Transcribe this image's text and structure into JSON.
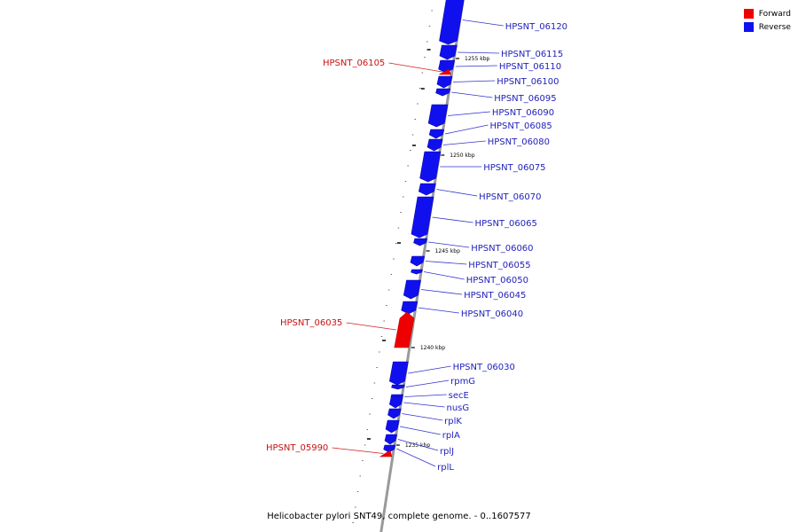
{
  "colors": {
    "forward": "#ee0000",
    "reverse": "#1010ee",
    "backbone": "#9a9a9a",
    "leader_forward": "#cc2222",
    "leader_reverse": "#3333cc"
  },
  "legend": {
    "forward_label": "Forward",
    "reverse_label": "Reverse"
  },
  "caption": "Helicobacter pylori SNT49, complete genome. - 0..1607577",
  "kbp_marks": [
    "1255 kbp",
    "1250 kbp",
    "1245 kbp",
    "1240 kbp",
    "1235 kbp"
  ],
  "reverse_genes": [
    {
      "name": "HPSNT_06120"
    },
    {
      "name": "HPSNT_06115"
    },
    {
      "name": "HPSNT_06110"
    },
    {
      "name": "HPSNT_06100"
    },
    {
      "name": "HPSNT_06095"
    },
    {
      "name": "HPSNT_06090"
    },
    {
      "name": "HPSNT_06085"
    },
    {
      "name": "HPSNT_06080"
    },
    {
      "name": "HPSNT_06075"
    },
    {
      "name": "HPSNT_06070"
    },
    {
      "name": "HPSNT_06065"
    },
    {
      "name": "HPSNT_06060"
    },
    {
      "name": "HPSNT_06055"
    },
    {
      "name": "HPSNT_06050"
    },
    {
      "name": "HPSNT_06045"
    },
    {
      "name": "HPSNT_06040"
    },
    {
      "name": "HPSNT_06030"
    },
    {
      "name": "rpmG"
    },
    {
      "name": "secE"
    },
    {
      "name": "nusG"
    },
    {
      "name": "rplK"
    },
    {
      "name": "rplA"
    },
    {
      "name": "rplJ"
    },
    {
      "name": "rplL"
    }
  ],
  "forward_genes": [
    {
      "name": "HPSNT_06105"
    },
    {
      "name": "HPSNT_06035"
    },
    {
      "name": "HPSNT_05990"
    }
  ]
}
